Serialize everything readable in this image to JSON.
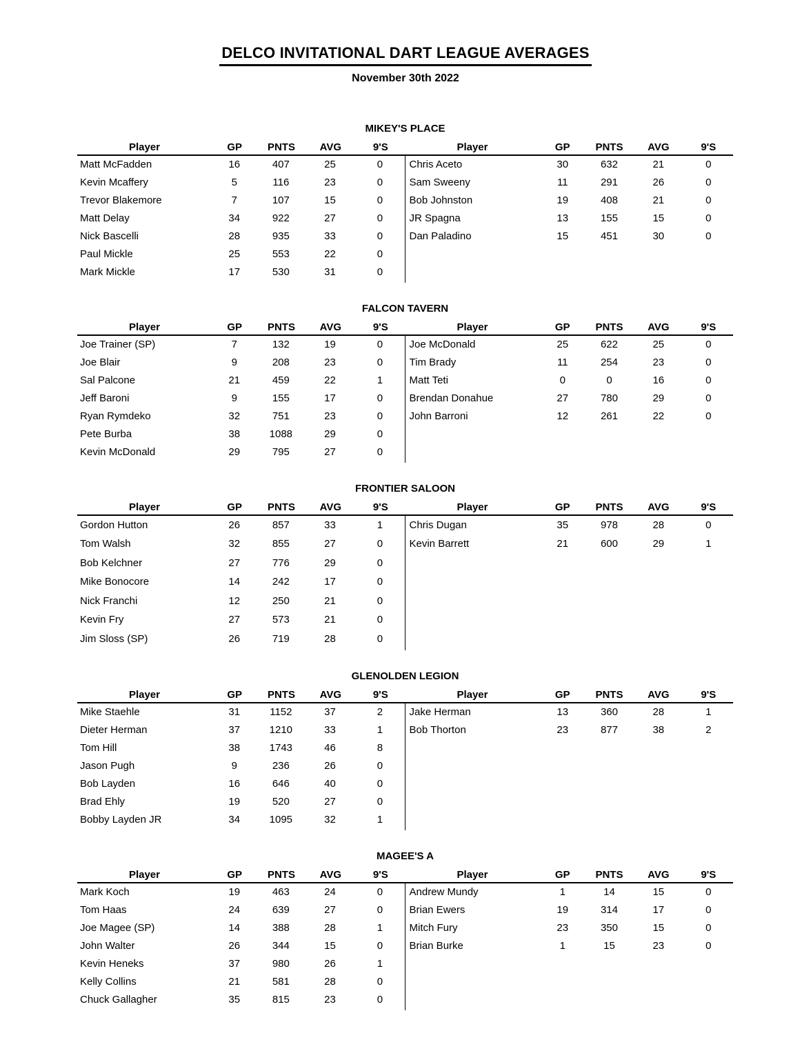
{
  "page": {
    "title": "DELCO INVITATIONAL DART LEAGUE AVERAGES",
    "date": "November 30th 2022"
  },
  "columns": [
    "Player",
    "GP",
    "PNTS",
    "AVG",
    "9'S"
  ],
  "sections": [
    {
      "name": "MIKEY'S PLACE",
      "left": [
        {
          "player": "Matt McFadden",
          "gp": "16",
          "pnts": "407",
          "avg": "25",
          "nines": "0"
        },
        {
          "player": "Kevin Mcaffery",
          "gp": "5",
          "pnts": "116",
          "avg": "23",
          "nines": "0"
        },
        {
          "player": "Trevor Blakemore",
          "gp": "7",
          "pnts": "107",
          "avg": "15",
          "nines": "0"
        },
        {
          "player": "Matt Delay",
          "gp": "34",
          "pnts": "922",
          "avg": "27",
          "nines": "0"
        },
        {
          "player": "Nick Bascelli",
          "gp": "28",
          "pnts": "935",
          "avg": "33",
          "nines": "0"
        },
        {
          "player": "Paul Mickle",
          "gp": "25",
          "pnts": "553",
          "avg": "22",
          "nines": "0"
        },
        {
          "player": "Mark Mickle",
          "gp": "17",
          "pnts": "530",
          "avg": "31",
          "nines": "0"
        }
      ],
      "right": [
        {
          "player": "Chris Aceto",
          "gp": "30",
          "pnts": "632",
          "avg": "21",
          "nines": "0"
        },
        {
          "player": "Sam Sweeny",
          "gp": "11",
          "pnts": "291",
          "avg": "26",
          "nines": "0"
        },
        {
          "player": "Bob Johnston",
          "gp": "19",
          "pnts": "408",
          "avg": "21",
          "nines": "0"
        },
        {
          "player": "JR Spagna",
          "gp": "13",
          "pnts": "155",
          "avg": "15",
          "nines": "0"
        },
        {
          "player": "Dan Paladino",
          "gp": "15",
          "pnts": "451",
          "avg": "30",
          "nines": "0"
        }
      ]
    },
    {
      "name": "FALCON TAVERN",
      "left": [
        {
          "player": "Joe Trainer (SP)",
          "gp": "7",
          "pnts": "132",
          "avg": "19",
          "nines": "0"
        },
        {
          "player": "Joe Blair",
          "gp": "9",
          "pnts": "208",
          "avg": "23",
          "nines": "0"
        },
        {
          "player": "Sal Palcone",
          "gp": "21",
          "pnts": "459",
          "avg": "22",
          "nines": "1"
        },
        {
          "player": "Jeff Baroni",
          "gp": "9",
          "pnts": "155",
          "avg": "17",
          "nines": "0"
        },
        {
          "player": "Ryan Rymdeko",
          "gp": "32",
          "pnts": "751",
          "avg": "23",
          "nines": "0"
        },
        {
          "player": "Pete Burba",
          "gp": "38",
          "pnts": "1088",
          "avg": "29",
          "nines": "0"
        },
        {
          "player": "Kevin McDonald",
          "gp": "29",
          "pnts": "795",
          "avg": "27",
          "nines": "0"
        }
      ],
      "right": [
        {
          "player": "Joe McDonald",
          "gp": "25",
          "pnts": "622",
          "avg": "25",
          "nines": "0"
        },
        {
          "player": "Tim Brady",
          "gp": "11",
          "pnts": "254",
          "avg": "23",
          "nines": "0"
        },
        {
          "player": "Matt Teti",
          "gp": "0",
          "pnts": "0",
          "avg": "16",
          "nines": "0"
        },
        {
          "player": "Brendan Donahue",
          "gp": "27",
          "pnts": "780",
          "avg": "29",
          "nines": "0"
        },
        {
          "player": "John Barroni",
          "gp": "12",
          "pnts": "261",
          "avg": "22",
          "nines": "0"
        }
      ]
    },
    {
      "name": "FRONTIER SALOON",
      "left": [
        {
          "player": "Gordon Hutton",
          "gp": "26",
          "pnts": "857",
          "avg": "33",
          "nines": "1"
        },
        {
          "player": "Tom Walsh",
          "gp": "32",
          "pnts": "855",
          "avg": "27",
          "nines": "0"
        },
        {
          "player": "Bob Kelchner",
          "gp": "27",
          "pnts": "776",
          "avg": "29",
          "nines": "0"
        },
        {
          "player": "Mike Bonocore",
          "gp": "14",
          "pnts": "242",
          "avg": "17",
          "nines": "0"
        },
        {
          "player": "Nick Franchi",
          "gp": "12",
          "pnts": "250",
          "avg": "21",
          "nines": "0"
        },
        {
          "player": "Kevin Fry",
          "gp": "27",
          "pnts": "573",
          "avg": "21",
          "nines": "0"
        },
        {
          "player": "Jim Sloss (SP)",
          "gp": "26",
          "pnts": "719",
          "avg": "28",
          "nines": "0"
        }
      ],
      "right": [
        {
          "player": "Chris Dugan",
          "gp": "35",
          "pnts": "978",
          "avg": "28",
          "nines": "0"
        },
        {
          "player": "Kevin Barrett",
          "gp": "21",
          "pnts": "600",
          "avg": "29",
          "nines": "1"
        }
      ]
    },
    {
      "name": "GLENOLDEN LEGION",
      "left": [
        {
          "player": "Mike Staehle",
          "gp": "31",
          "pnts": "1152",
          "avg": "37",
          "nines": "2"
        },
        {
          "player": "Dieter Herman",
          "gp": "37",
          "pnts": "1210",
          "avg": "33",
          "nines": "1"
        },
        {
          "player": "Tom Hill",
          "gp": "38",
          "pnts": "1743",
          "avg": "46",
          "nines": "8"
        },
        {
          "player": "Jason Pugh",
          "gp": "9",
          "pnts": "236",
          "avg": "26",
          "nines": "0"
        },
        {
          "player": "Bob Layden",
          "gp": "16",
          "pnts": "646",
          "avg": "40",
          "nines": "0"
        },
        {
          "player": "Brad Ehly",
          "gp": "19",
          "pnts": "520",
          "avg": "27",
          "nines": "0"
        },
        {
          "player": "Bobby Layden JR",
          "gp": "34",
          "pnts": "1095",
          "avg": "32",
          "nines": "1"
        }
      ],
      "right": [
        {
          "player": "Jake Herman",
          "gp": "13",
          "pnts": "360",
          "avg": "28",
          "nines": "1"
        },
        {
          "player": "Bob Thorton",
          "gp": "23",
          "pnts": "877",
          "avg": "38",
          "nines": "2"
        }
      ]
    },
    {
      "name": "MAGEE'S A",
      "left": [
        {
          "player": "Mark Koch",
          "gp": "19",
          "pnts": "463",
          "avg": "24",
          "nines": "0"
        },
        {
          "player": "Tom Haas",
          "gp": "24",
          "pnts": "639",
          "avg": "27",
          "nines": "0"
        },
        {
          "player": "Joe Magee (SP)",
          "gp": "14",
          "pnts": "388",
          "avg": "28",
          "nines": "1"
        },
        {
          "player": "John Walter",
          "gp": "26",
          "pnts": "344",
          "avg": "15",
          "nines": "0"
        },
        {
          "player": "Kevin Heneks",
          "gp": "37",
          "pnts": "980",
          "avg": "26",
          "nines": "1"
        },
        {
          "player": "Kelly Collins",
          "gp": "21",
          "pnts": "581",
          "avg": "28",
          "nines": "0"
        },
        {
          "player": "Chuck Gallagher",
          "gp": "35",
          "pnts": "815",
          "avg": "23",
          "nines": "0"
        }
      ],
      "right": [
        {
          "player": "Andrew Mundy",
          "gp": "1",
          "pnts": "14",
          "avg": "15",
          "nines": "0"
        },
        {
          "player": "Brian Ewers",
          "gp": "19",
          "pnts": "314",
          "avg": "17",
          "nines": "0"
        },
        {
          "player": "Mitch Fury",
          "gp": "23",
          "pnts": "350",
          "avg": "15",
          "nines": "0"
        },
        {
          "player": "Brian Burke",
          "gp": "1",
          "pnts": "15",
          "avg": "23",
          "nines": "0"
        }
      ]
    }
  ]
}
